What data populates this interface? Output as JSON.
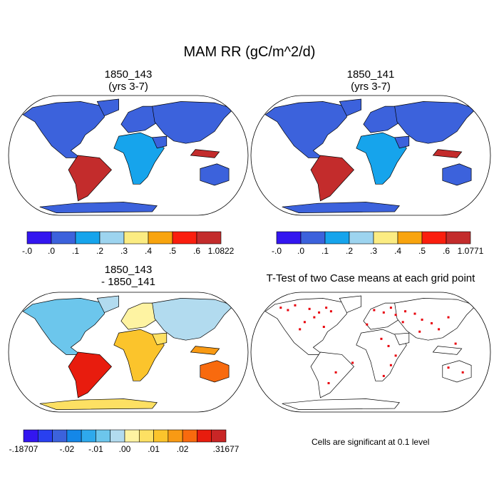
{
  "main_title": "MAM RR (gC/m^2/d)",
  "chart_data": [
    {
      "type": "heatmap",
      "panel": "top-left",
      "title": "1850_143",
      "subtitle": "(yrs 3-7)",
      "projection": "robinson",
      "colorbar": {
        "colors": [
          "#3316f0",
          "#3c62dc",
          "#16a4ec",
          "#9dd4ef",
          "#fbec82",
          "#f8a40e",
          "#fa1e0e",
          "#c32c2c"
        ],
        "tick_labels": [
          "-.0",
          ".0",
          ".1",
          ".2",
          ".3",
          ".4",
          ".5",
          ".6",
          "1.0822"
        ],
        "max": 1.0822
      }
    },
    {
      "type": "heatmap",
      "panel": "top-right",
      "title": "1850_141",
      "subtitle": "(yrs 3-7)",
      "projection": "robinson",
      "colorbar": {
        "colors": [
          "#3316f0",
          "#3c62dc",
          "#16a4ec",
          "#9dd4ef",
          "#fbec82",
          "#f8a40e",
          "#fa1e0e",
          "#c32c2c"
        ],
        "tick_labels": [
          "-.0",
          ".0",
          ".1",
          ".2",
          ".3",
          ".4",
          ".5",
          ".6",
          "1.0771"
        ],
        "max": 1.0771
      }
    },
    {
      "type": "heatmap",
      "panel": "bottom-left",
      "title": "1850_143",
      "subtitle": "- 1850_141",
      "projection": "robinson",
      "colorbar": {
        "colors": [
          "#3316f0",
          "#2940f0",
          "#3c62dc",
          "#1487e8",
          "#2ea9ec",
          "#6cc6ec",
          "#b2dbef",
          "#fef3a2",
          "#fde063",
          "#fbc42c",
          "#f89a14",
          "#f86a0e",
          "#e81c0e",
          "#c92626"
        ],
        "tick_labels": [
          "-.18707",
          "-.02",
          "-.01",
          ".00",
          ".01",
          ".02",
          ".31677"
        ],
        "min": -0.18707,
        "max": 0.31677
      }
    },
    {
      "type": "heatmap",
      "panel": "bottom-right",
      "title": "T-Test of two Case means at each grid point",
      "projection": "robinson",
      "note": "Cells are significant at 0.1 level",
      "marker_color": "#e8000b"
    }
  ]
}
